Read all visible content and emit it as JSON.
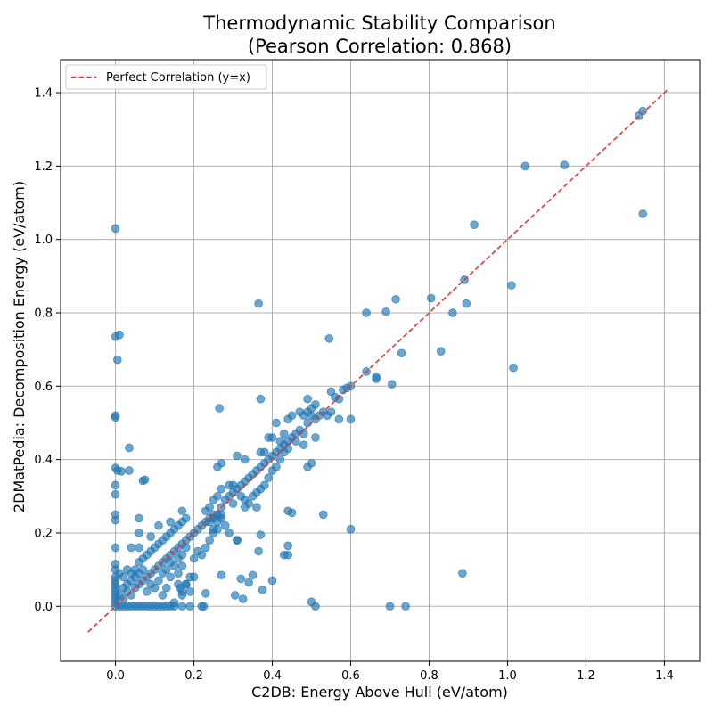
{
  "chart_data": {
    "type": "scatter",
    "title_line1": "Thermodynamic Stability Comparison",
    "title_line2": "(Pearson Correlation: 0.868)",
    "xlabel": "C2DB: Energy Above Hull (eV/atom)",
    "ylabel": "2DMatPedia: Decomposition Energy (eV/atom)",
    "xlim": [
      -0.14,
      1.49
    ],
    "ylim": [
      -0.15,
      1.49
    ],
    "xticks": [
      "0.0",
      "0.2",
      "0.4",
      "0.6",
      "0.8",
      "1.0",
      "1.2",
      "1.4"
    ],
    "yticks": [
      "0.0",
      "0.2",
      "0.4",
      "0.6",
      "0.8",
      "1.0",
      "1.2",
      "1.4"
    ],
    "grid": true,
    "legend_position": "top-left",
    "legend_label": "Perfect Correlation (y=x)",
    "reference_line": {
      "from": -0.07,
      "to": 1.41
    },
    "colors": {
      "points": "#1f77b4",
      "reference_line": "#e53935",
      "grid": "#b0b0b0"
    },
    "series": [
      {
        "points": [
          [
            0.0,
            1.03
          ],
          [
            0.0,
            0.735
          ],
          [
            0.01,
            0.74
          ],
          [
            0.005,
            0.672
          ],
          [
            0.0,
            0.52
          ],
          [
            0.0,
            0.515
          ],
          [
            0.0,
            0.377
          ],
          [
            0.005,
            0.37
          ],
          [
            0.015,
            0.368
          ],
          [
            0.035,
            0.432
          ],
          [
            0.035,
            0.37
          ],
          [
            0.0,
            0.33
          ],
          [
            0.0,
            0.305
          ],
          [
            0.07,
            0.342
          ],
          [
            0.075,
            0.345
          ],
          [
            0.0,
            0.25
          ],
          [
            0.0,
            0.235
          ],
          [
            0.06,
            0.24
          ],
          [
            0.06,
            0.2
          ],
          [
            0.0,
            0.16
          ],
          [
            0.04,
            0.16
          ],
          [
            0.06,
            0.16
          ],
          [
            0.0,
            0.115
          ],
          [
            0.0,
            0.1
          ],
          [
            0.01,
            0.09
          ],
          [
            0.0,
            0.08
          ],
          [
            0.0,
            0.07
          ],
          [
            0.0,
            0.06
          ],
          [
            0.0,
            0.05
          ],
          [
            0.0,
            0.04
          ],
          [
            0.0,
            0.03
          ],
          [
            0.0,
            0.02
          ],
          [
            0.0,
            0.01
          ],
          [
            0.0,
            0.0
          ],
          [
            0.01,
            0.0
          ],
          [
            0.02,
            0.0
          ],
          [
            0.03,
            0.0
          ],
          [
            0.04,
            0.0
          ],
          [
            0.05,
            0.0
          ],
          [
            0.06,
            0.0
          ],
          [
            0.07,
            0.0
          ],
          [
            0.08,
            0.0
          ],
          [
            0.09,
            0.0
          ],
          [
            0.1,
            0.0
          ],
          [
            0.11,
            0.0
          ],
          [
            0.12,
            0.0
          ],
          [
            0.13,
            0.0
          ],
          [
            0.14,
            0.0
          ],
          [
            0.15,
            0.0
          ],
          [
            0.17,
            0.0
          ],
          [
            0.19,
            0.0
          ],
          [
            0.225,
            0.0
          ],
          [
            0.01,
            0.03
          ],
          [
            0.02,
            0.05
          ],
          [
            0.03,
            0.06
          ],
          [
            0.04,
            0.07
          ],
          [
            0.05,
            0.08
          ],
          [
            0.06,
            0.09
          ],
          [
            0.07,
            0.1
          ],
          [
            0.02,
            0.02
          ],
          [
            0.03,
            0.04
          ],
          [
            0.04,
            0.03
          ],
          [
            0.05,
            0.05
          ],
          [
            0.06,
            0.06
          ],
          [
            0.07,
            0.07
          ],
          [
            0.08,
            0.08
          ],
          [
            0.09,
            0.09
          ],
          [
            0.1,
            0.1
          ],
          [
            0.11,
            0.11
          ],
          [
            0.12,
            0.12
          ],
          [
            0.13,
            0.13
          ],
          [
            0.14,
            0.14
          ],
          [
            0.15,
            0.15
          ],
          [
            0.16,
            0.16
          ],
          [
            0.17,
            0.17
          ],
          [
            0.18,
            0.18
          ],
          [
            0.19,
            0.19
          ],
          [
            0.2,
            0.2
          ],
          [
            0.21,
            0.21
          ],
          [
            0.22,
            0.22
          ],
          [
            0.23,
            0.23
          ],
          [
            0.24,
            0.24
          ],
          [
            0.25,
            0.25
          ],
          [
            0.08,
            0.04
          ],
          [
            0.09,
            0.06
          ],
          [
            0.1,
            0.05
          ],
          [
            0.11,
            0.07
          ],
          [
            0.12,
            0.09
          ],
          [
            0.13,
            0.1
          ],
          [
            0.14,
            0.12
          ],
          [
            0.15,
            0.11
          ],
          [
            0.16,
            0.13
          ],
          [
            0.17,
            0.14
          ],
          [
            0.18,
            0.16
          ],
          [
            0.05,
            0.1
          ],
          [
            0.06,
            0.12
          ],
          [
            0.07,
            0.13
          ],
          [
            0.08,
            0.14
          ],
          [
            0.09,
            0.15
          ],
          [
            0.1,
            0.16
          ],
          [
            0.11,
            0.17
          ],
          [
            0.12,
            0.18
          ],
          [
            0.13,
            0.19
          ],
          [
            0.14,
            0.2
          ],
          [
            0.15,
            0.21
          ],
          [
            0.16,
            0.22
          ],
          [
            0.17,
            0.23
          ],
          [
            0.18,
            0.24
          ],
          [
            0.02,
            0.08
          ],
          [
            0.03,
            0.1
          ],
          [
            0.04,
            0.09
          ],
          [
            0.09,
            0.19
          ],
          [
            0.11,
            0.22
          ],
          [
            0.14,
            0.23
          ],
          [
            0.17,
            0.26
          ],
          [
            0.12,
            0.03
          ],
          [
            0.13,
            0.05
          ],
          [
            0.14,
            0.08
          ],
          [
            0.16,
            0.06
          ],
          [
            0.17,
            0.04
          ],
          [
            0.18,
            0.06
          ],
          [
            0.16,
            0.09
          ],
          [
            0.17,
            0.11
          ],
          [
            0.19,
            0.08
          ],
          [
            0.2,
            0.13
          ],
          [
            0.21,
            0.15
          ],
          [
            0.22,
            0.14
          ],
          [
            0.23,
            0.035
          ],
          [
            0.22,
            0.0
          ],
          [
            0.23,
            0.16
          ],
          [
            0.24,
            0.18
          ],
          [
            0.25,
            0.2
          ],
          [
            0.26,
            0.21
          ],
          [
            0.27,
            0.24
          ],
          [
            0.27,
            0.27
          ],
          [
            0.28,
            0.29
          ],
          [
            0.29,
            0.3
          ],
          [
            0.3,
            0.31
          ],
          [
            0.31,
            0.32
          ],
          [
            0.32,
            0.33
          ],
          [
            0.33,
            0.34
          ],
          [
            0.34,
            0.35
          ],
          [
            0.35,
            0.36
          ],
          [
            0.36,
            0.37
          ],
          [
            0.37,
            0.38
          ],
          [
            0.38,
            0.39
          ],
          [
            0.39,
            0.4
          ],
          [
            0.4,
            0.41
          ],
          [
            0.41,
            0.42
          ],
          [
            0.42,
            0.43
          ],
          [
            0.43,
            0.44
          ],
          [
            0.44,
            0.45
          ],
          [
            0.45,
            0.46
          ],
          [
            0.46,
            0.47
          ],
          [
            0.47,
            0.48
          ],
          [
            0.48,
            0.47
          ],
          [
            0.49,
            0.5
          ],
          [
            0.5,
            0.52
          ],
          [
            0.51,
            0.51
          ],
          [
            0.52,
            0.52
          ],
          [
            0.53,
            0.53
          ],
          [
            0.54,
            0.52
          ],
          [
            0.55,
            0.53
          ],
          [
            0.26,
            0.38
          ],
          [
            0.27,
            0.39
          ],
          [
            0.29,
            0.33
          ],
          [
            0.3,
            0.33
          ],
          [
            0.31,
            0.41
          ],
          [
            0.33,
            0.4
          ],
          [
            0.32,
            0.3
          ],
          [
            0.33,
            0.29
          ],
          [
            0.34,
            0.28
          ],
          [
            0.36,
            0.27
          ],
          [
            0.37,
            0.42
          ],
          [
            0.38,
            0.42
          ],
          [
            0.39,
            0.46
          ],
          [
            0.4,
            0.46
          ],
          [
            0.41,
            0.5
          ],
          [
            0.42,
            0.45
          ],
          [
            0.43,
            0.47
          ],
          [
            0.44,
            0.51
          ],
          [
            0.45,
            0.52
          ],
          [
            0.47,
            0.53
          ],
          [
            0.48,
            0.52
          ],
          [
            0.49,
            0.53
          ],
          [
            0.49,
            0.565
          ],
          [
            0.5,
            0.54
          ],
          [
            0.51,
            0.55
          ],
          [
            0.33,
            0.27
          ],
          [
            0.35,
            0.3
          ],
          [
            0.36,
            0.31
          ],
          [
            0.37,
            0.32
          ],
          [
            0.38,
            0.33
          ],
          [
            0.39,
            0.35
          ],
          [
            0.4,
            0.37
          ],
          [
            0.41,
            0.38
          ],
          [
            0.42,
            0.4
          ],
          [
            0.43,
            0.42
          ],
          [
            0.44,
            0.43
          ],
          [
            0.46,
            0.45
          ],
          [
            0.48,
            0.44
          ],
          [
            0.49,
            0.38
          ],
          [
            0.5,
            0.39
          ],
          [
            0.51,
            0.46
          ],
          [
            0.29,
            0.2
          ],
          [
            0.3,
            0.28
          ],
          [
            0.31,
            0.18
          ],
          [
            0.27,
            0.32
          ],
          [
            0.26,
            0.3
          ],
          [
            0.25,
            0.29
          ],
          [
            0.24,
            0.27
          ],
          [
            0.23,
            0.26
          ],
          [
            0.24,
            0.23
          ],
          [
            0.25,
            0.24
          ],
          [
            0.26,
            0.25
          ],
          [
            0.25,
            0.21
          ],
          [
            0.26,
            0.23
          ],
          [
            0.27,
            0.25
          ],
          [
            0.28,
            0.22
          ],
          [
            0.265,
            0.54
          ],
          [
            0.37,
            0.565
          ],
          [
            0.365,
            0.825
          ],
          [
            0.545,
            0.73
          ],
          [
            0.55,
            0.585
          ],
          [
            0.56,
            0.57
          ],
          [
            0.57,
            0.565
          ],
          [
            0.58,
            0.59
          ],
          [
            0.59,
            0.595
          ],
          [
            0.6,
            0.6
          ],
          [
            0.57,
            0.51
          ],
          [
            0.6,
            0.51
          ],
          [
            0.64,
            0.64
          ],
          [
            0.665,
            0.625
          ],
          [
            0.665,
            0.62
          ],
          [
            0.705,
            0.605
          ],
          [
            0.73,
            0.69
          ],
          [
            0.64,
            0.8
          ],
          [
            0.69,
            0.803
          ],
          [
            0.715,
            0.837
          ],
          [
            0.805,
            0.84
          ],
          [
            0.86,
            0.8
          ],
          [
            0.83,
            0.695
          ],
          [
            0.89,
            0.89
          ],
          [
            0.895,
            0.825
          ],
          [
            0.915,
            1.04
          ],
          [
            1.01,
            0.875
          ],
          [
            1.015,
            0.65
          ],
          [
            1.045,
            1.2
          ],
          [
            1.145,
            1.203
          ],
          [
            1.335,
            1.337
          ],
          [
            1.345,
            1.35
          ],
          [
            1.345,
            1.07
          ],
          [
            0.6,
            0.21
          ],
          [
            0.53,
            0.25
          ],
          [
            0.45,
            0.255
          ],
          [
            0.44,
            0.26
          ],
          [
            0.44,
            0.165
          ],
          [
            0.43,
            0.14
          ],
          [
            0.44,
            0.14
          ],
          [
            0.4,
            0.07
          ],
          [
            0.365,
            0.15
          ],
          [
            0.37,
            0.195
          ],
          [
            0.375,
            0.045
          ],
          [
            0.35,
            0.085
          ],
          [
            0.34,
            0.065
          ],
          [
            0.32,
            0.075
          ],
          [
            0.325,
            0.02
          ],
          [
            0.305,
            0.03
          ],
          [
            0.31,
            0.18
          ],
          [
            0.27,
            0.085
          ],
          [
            0.5,
            0.012
          ],
          [
            0.51,
            0.0
          ],
          [
            0.7,
            0.0
          ],
          [
            0.74,
            0.0
          ],
          [
            0.885,
            0.09
          ],
          [
            0.165,
            0.05
          ],
          [
            0.18,
            0.06
          ],
          [
            0.17,
            0.03
          ],
          [
            0.15,
            0.01
          ],
          [
            0.2,
            0.08
          ],
          [
            0.19,
            0.04
          ]
        ]
      }
    ]
  }
}
